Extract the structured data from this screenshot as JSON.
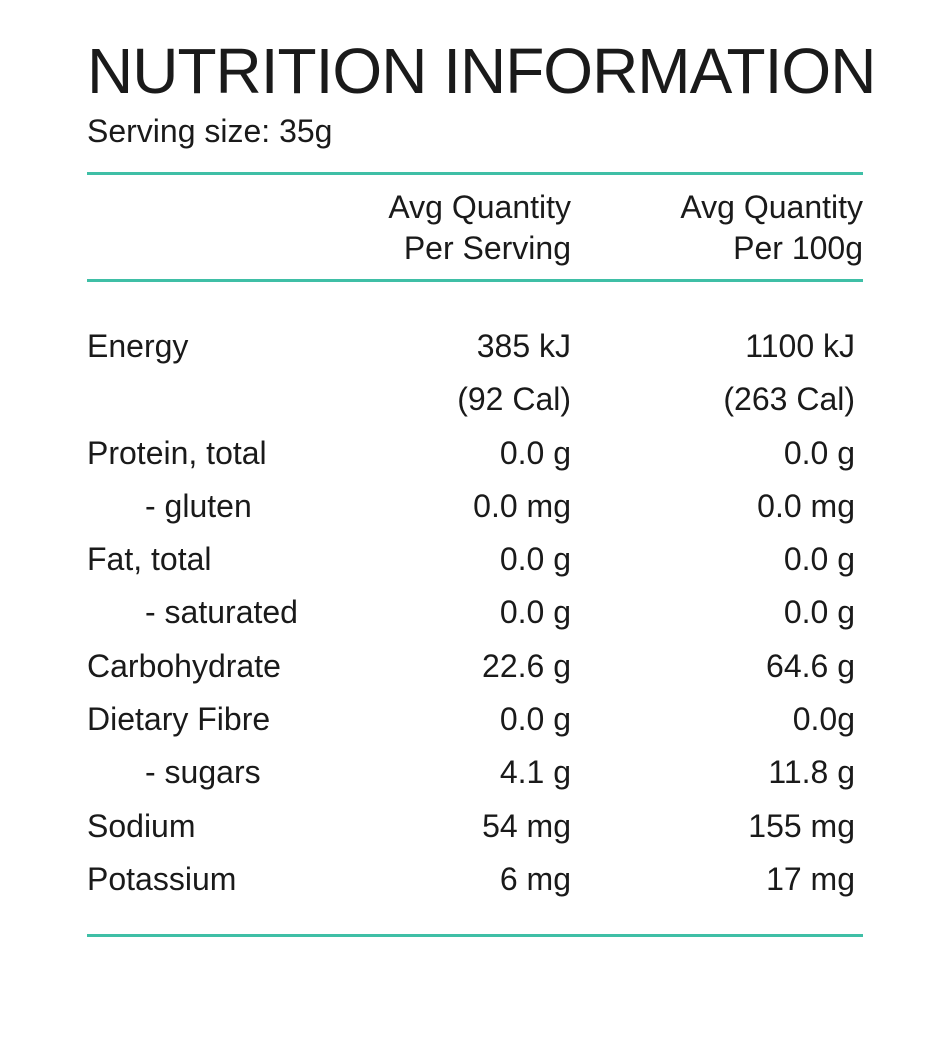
{
  "title": "NUTRITION INFORMATION",
  "serving_size": "Serving size: 35g",
  "columns": {
    "per_serving": [
      "Avg Quantity",
      "Per Serving"
    ],
    "per_100g": [
      "Avg Quantity",
      "Per 100g"
    ]
  },
  "colors": {
    "rule": "#3fbfa6",
    "text": "#1a1a1a"
  },
  "rows": [
    {
      "label": "Energy",
      "indent": false,
      "per_serving": "385 kJ",
      "per_100g": "1100 kJ"
    },
    {
      "label": "",
      "indent": false,
      "per_serving": "(92 Cal)",
      "per_100g": "(263 Cal)"
    },
    {
      "label": "Protein, total",
      "indent": false,
      "per_serving": "0.0 g",
      "per_100g": "0.0 g"
    },
    {
      "label": "- gluten",
      "indent": true,
      "per_serving": "0.0 mg",
      "per_100g": "0.0 mg"
    },
    {
      "label": "Fat, total",
      "indent": false,
      "per_serving": "0.0 g",
      "per_100g": "0.0 g"
    },
    {
      "label": "- saturated",
      "indent": true,
      "per_serving": "0.0 g",
      "per_100g": "0.0 g"
    },
    {
      "label": "Carbohydrate",
      "indent": false,
      "per_serving": "22.6 g",
      "per_100g": "64.6 g"
    },
    {
      "label": "Dietary Fibre",
      "indent": false,
      "per_serving": "0.0 g",
      "per_100g": "0.0g"
    },
    {
      "label": "- sugars",
      "indent": true,
      "per_serving": "4.1 g",
      "per_100g": "11.8 g"
    },
    {
      "label": "Sodium",
      "indent": false,
      "per_serving": "54 mg",
      "per_100g": "155 mg"
    },
    {
      "label": "Potassium",
      "indent": false,
      "per_serving": "6 mg",
      "per_100g": "17 mg"
    }
  ]
}
